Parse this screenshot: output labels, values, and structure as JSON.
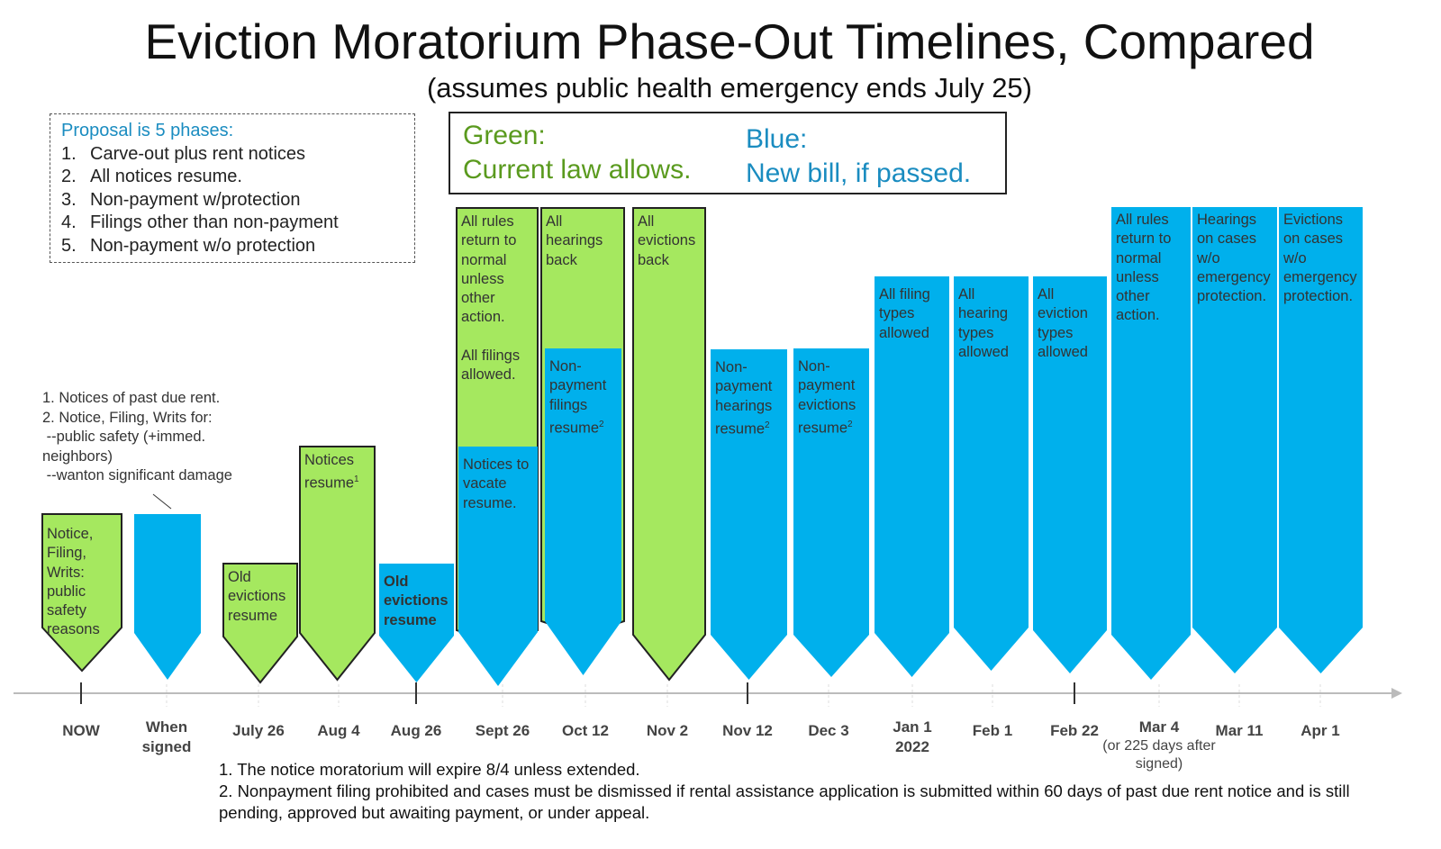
{
  "title": "Eviction Moratorium Phase-Out Timelines, Compared",
  "subtitle": "(assumes public health emergency ends July 25)",
  "proposal": {
    "heading": "Proposal is 5 phases:",
    "items": [
      "Carve-out plus rent notices",
      "All notices resume.",
      "Non-payment w/protection",
      "Filings other than non-payment",
      "Non-payment w/o protection"
    ]
  },
  "legend": {
    "green_title": "Green:",
    "green_text": "Current law allows.",
    "blue_title": "Blue:",
    "blue_text": "New bill, if passed."
  },
  "colors": {
    "green": "#a5e85f",
    "blue": "#00b0ec",
    "outline": "#222222",
    "axis": "#bbbbbb"
  },
  "callout": [
    "1. Notices of past due rent.",
    "2. Notice, Filing, Writs for:",
    " --public safety (+immed.",
    "neighbors)",
    " --wanton significant damage"
  ],
  "timeline": [
    {
      "date": "NOW",
      "green": "Notice, Filing, Writs: public safety reasons",
      "blue": null
    },
    {
      "date": "When signed",
      "green": null,
      "blue": ""
    },
    {
      "date": "July 26",
      "green": "Old evictions resume",
      "blue": null
    },
    {
      "date": "Aug 4",
      "green": "Notices resume",
      "green_sup": "1",
      "blue": null
    },
    {
      "date": "Aug 26",
      "green": null,
      "blue": "Old evictions resume"
    },
    {
      "date": "Sept 26",
      "green": "All rules return to normal unless other action.\n\nAll filings allowed.",
      "blue": "Notices to vacate resume."
    },
    {
      "date": "Oct 12",
      "green": "All hearings back",
      "blue": "Non-payment filings resume",
      "blue_sup": "2"
    },
    {
      "date": "Nov 2",
      "green": "All evictions back",
      "blue": null
    },
    {
      "date": "Nov 12",
      "green": null,
      "blue": "Non-payment hearings resume",
      "blue_sup": "2"
    },
    {
      "date": "Dec 3",
      "green": null,
      "blue": "Non-payment evictions resume",
      "blue_sup": "2"
    },
    {
      "date": "Jan 1 2022",
      "green": null,
      "blue": "All filing types allowed"
    },
    {
      "date": "Feb 1",
      "green": null,
      "blue": "All hearing types allowed"
    },
    {
      "date": "Feb 22",
      "green": null,
      "blue": "All eviction types allowed"
    },
    {
      "date": "Mar 4 (or 225 days after signed)",
      "green": null,
      "blue": "All rules return to normal unless other action."
    },
    {
      "date": "Mar 11",
      "green": null,
      "blue": "Hearings on cases w/o emergency protection."
    },
    {
      "date": "Apr 1",
      "green": null,
      "blue": "Evictions on cases w/o emergency protection."
    }
  ],
  "footnotes": [
    "1. The notice moratorium will expire 8/4 unless extended.",
    "2. Nonpayment filing prohibited and cases must be dismissed if rental assistance application is submitted within 60 days of past due rent notice and is still pending, approved but awaiting payment, or under appeal."
  ]
}
